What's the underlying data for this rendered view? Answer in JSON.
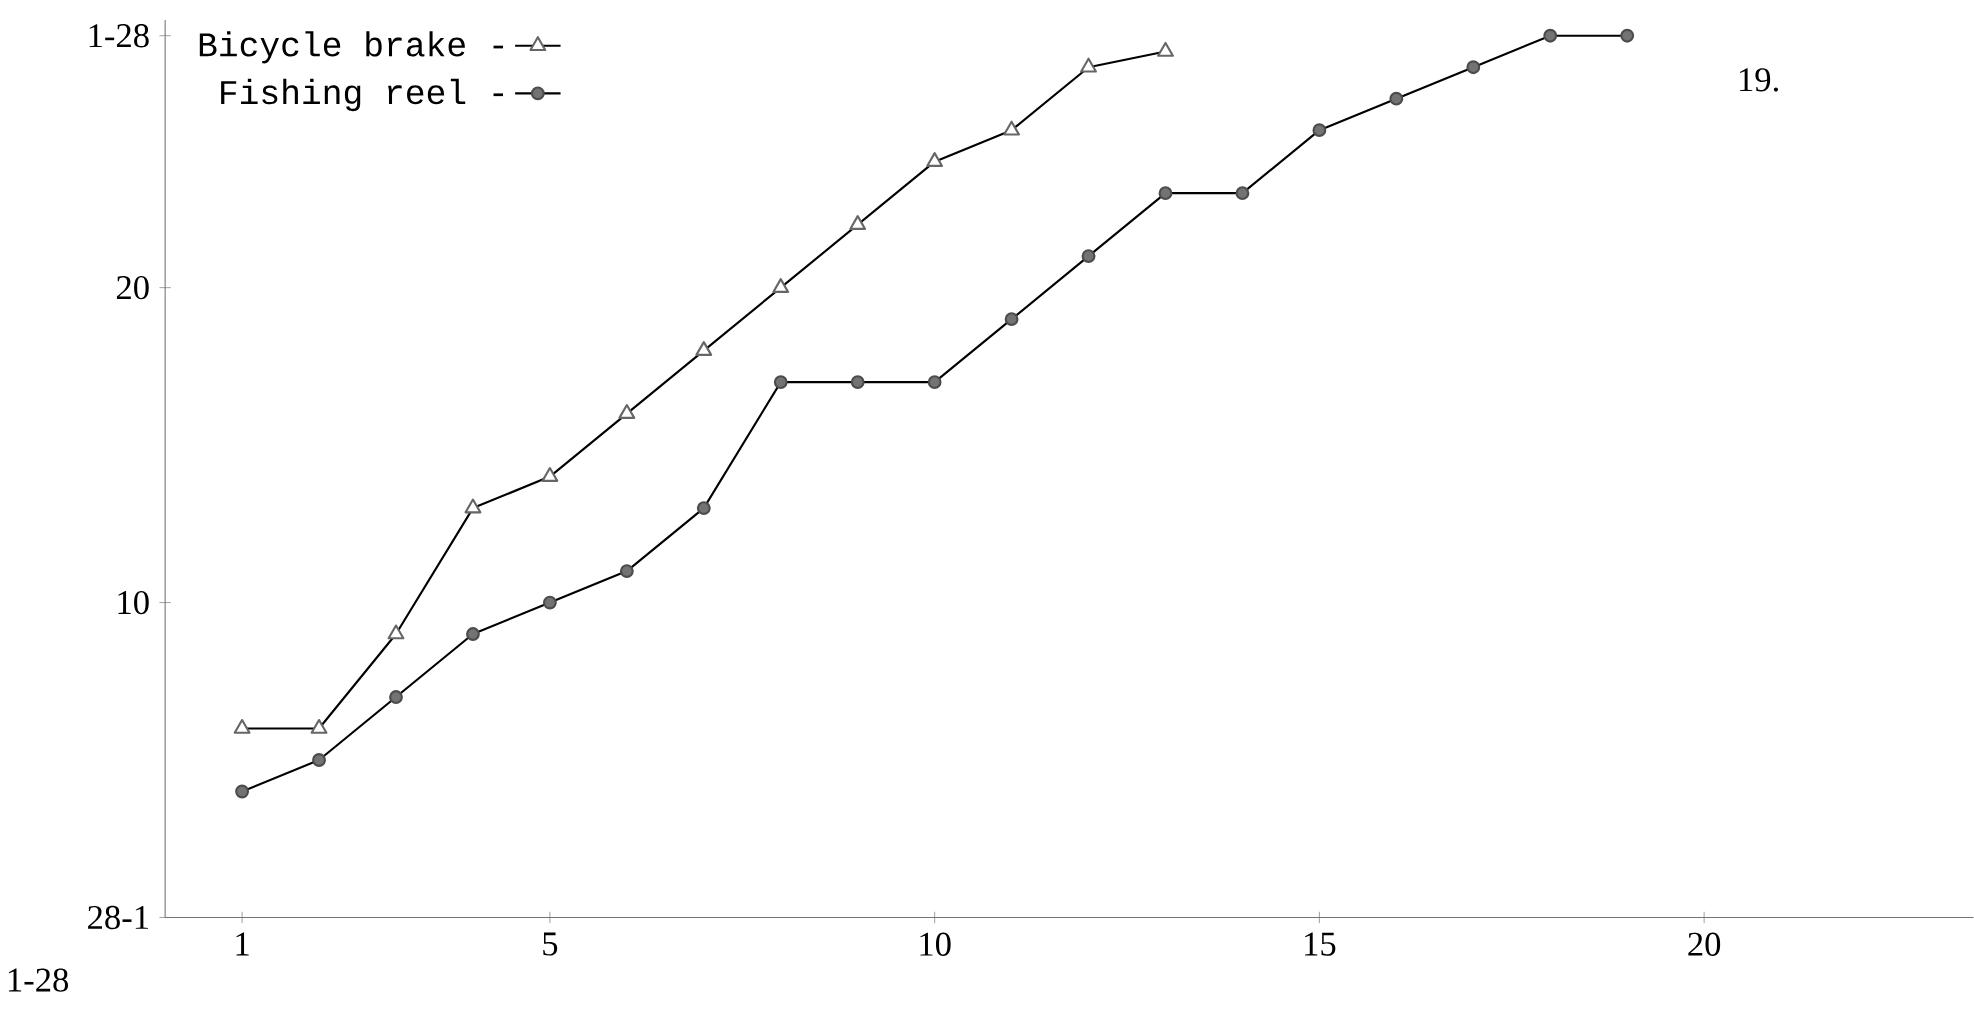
{
  "chart_data": {
    "type": "line",
    "x": [
      1,
      2,
      3,
      4,
      5,
      6,
      7,
      8,
      9,
      10,
      11,
      12,
      13,
      14,
      15,
      16,
      17,
      18,
      19
    ],
    "series": [
      {
        "name": "Bicycle brake -",
        "color": "#000000",
        "marker": "triangle",
        "x": [
          1,
          2,
          3,
          4,
          5,
          6,
          7,
          8,
          9,
          10,
          11,
          12,
          13
        ],
        "values": [
          6,
          6,
          9,
          13,
          14,
          16,
          18,
          20,
          22,
          24,
          25,
          27,
          27.5
        ]
      },
      {
        "name": "Fishing reel -",
        "color": "#000000",
        "marker": "circle",
        "values": [
          4,
          5,
          7,
          9,
          10,
          11,
          13,
          17,
          17,
          17,
          19,
          21,
          23,
          23,
          25,
          26,
          27,
          28,
          28
        ]
      }
    ],
    "xlim": [
      0,
      23.5
    ],
    "ylim": [
      0,
      28.5
    ],
    "xticks": [
      1,
      5,
      10,
      15,
      20
    ],
    "yticks": [
      {
        "value": 0,
        "label": "28-1"
      },
      10,
      20,
      {
        "value": 28,
        "label": "1-28"
      }
    ],
    "legend": "top left",
    "grid": false,
    "line_style": "solid",
    "annotations": [
      "19.",
      "1-28"
    ]
  }
}
